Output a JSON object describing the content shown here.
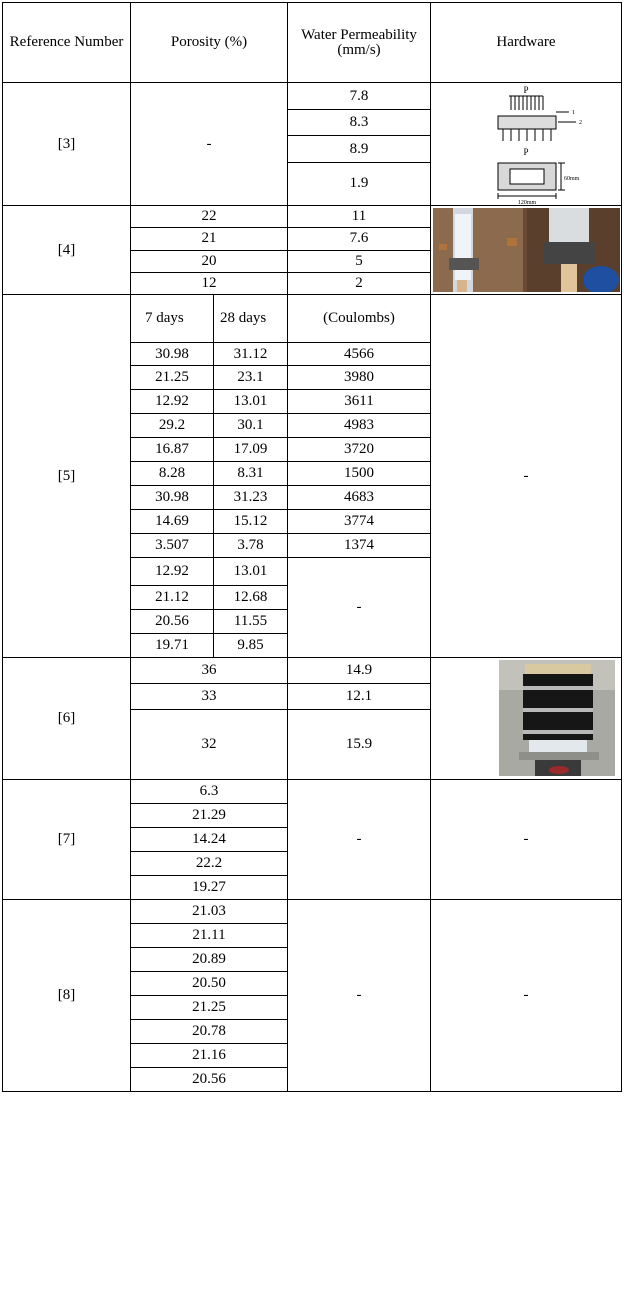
{
  "table": {
    "headers": {
      "ref": "Reference Number",
      "porosity": "Porosity (%)",
      "permeability": "Water Permeability (mm/s)",
      "hardware": "Hardware"
    },
    "rows": [
      {
        "ref": "[3]",
        "porosity": "-",
        "permeability": [
          "7.8",
          "8.3",
          "8.9",
          "1.9"
        ],
        "hardware_labels": {
          "p_top": "P",
          "n1": "1",
          "n2": "2",
          "p_bottom": "P",
          "height": "60mm",
          "width": "120mm"
        }
      },
      {
        "ref": "[4]",
        "porosity": [
          "22",
          "21",
          "20",
          "12"
        ],
        "permeability": [
          "11",
          "7.6",
          "5",
          "2"
        ],
        "hardware_icon": "permeameter-photo"
      },
      {
        "ref": "[5]",
        "subheaders": [
          "7 days",
          "28 days",
          "(Coulombs)"
        ],
        "porosity_7": [
          "30.98",
          "21.25",
          "12.92",
          "29.2",
          "16.87",
          "8.28",
          "30.98",
          "14.69",
          "3.507",
          "12.92",
          "21.12",
          "20.56",
          "19.71"
        ],
        "porosity_28": [
          "31.12",
          "23.1",
          "13.01",
          "30.1",
          "17.09",
          "8.31",
          "31.23",
          "15.12",
          "3.78",
          "13.01",
          "12.68",
          "11.55",
          "9.85"
        ],
        "coulombs": [
          "4566",
          "3980",
          "3611",
          "4983",
          "3720",
          "1500",
          "4683",
          "3774",
          "1374"
        ],
        "coulombs_missing": "-",
        "hardware": "-"
      },
      {
        "ref": "[6]",
        "porosity": [
          "36",
          "33",
          "32"
        ],
        "permeability": [
          "14.9",
          "12.1",
          "15.9"
        ],
        "hardware_icon": "test-cylinder-photo"
      },
      {
        "ref": "[7]",
        "porosity": [
          "6.3",
          "21.29",
          "14.24",
          "22.2",
          "19.27"
        ],
        "permeability": "-",
        "hardware": "-"
      },
      {
        "ref": "[8]",
        "porosity": [
          "21.03",
          "21.11",
          "20.89",
          "20.50",
          "21.25",
          "20.78",
          "21.16",
          "20.56"
        ],
        "permeability": "-",
        "hardware": "-"
      }
    ]
  }
}
